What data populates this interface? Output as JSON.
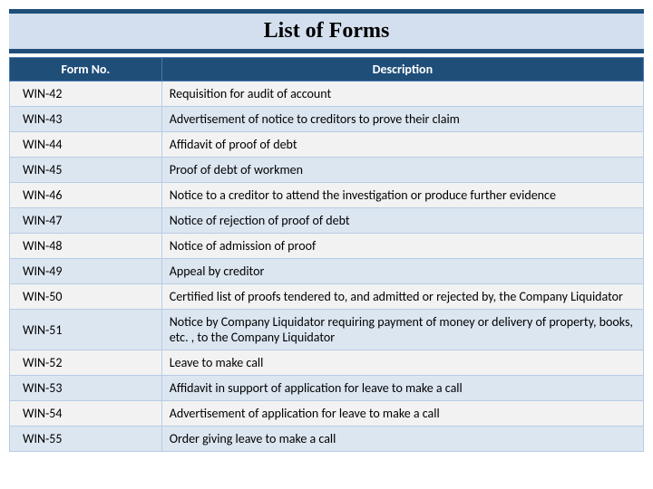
{
  "title": "List of Forms",
  "table": {
    "columns": [
      "Form No.",
      "Description"
    ],
    "col_widths": [
      "24%",
      "76%"
    ],
    "header_bg": "#1f4e79",
    "header_fg": "#ffffff",
    "row_odd_bg": "#f2f2f2",
    "row_even_bg": "#dce6f1",
    "border_color": "#b8cce4",
    "font_size": 14,
    "rows": [
      [
        "WIN-42",
        "Requisition for audit of account"
      ],
      [
        "WIN-43",
        "Advertisement of notice to creditors to prove their claim"
      ],
      [
        "WIN-44",
        "Affidavit of proof of debt"
      ],
      [
        "WIN-45",
        "Proof of debt of workmen"
      ],
      [
        "WIN-46",
        "Notice to a creditor to attend the investigation or produce further evidence"
      ],
      [
        "WIN-47",
        "Notice of rejection of proof of debt"
      ],
      [
        "WIN-48",
        "Notice of admission of proof"
      ],
      [
        "WIN-49",
        "Appeal by creditor"
      ],
      [
        "WIN-50",
        "Certified list of proofs tendered to, and admitted or rejected by, the Company Liquidator"
      ],
      [
        "WIN-51",
        "Notice by Company Liquidator requiring payment of money or delivery of property, books, etc. , to the Company Liquidator"
      ],
      [
        "WIN-52",
        "Leave to make call"
      ],
      [
        "WIN-53",
        "Affidavit in support of application for leave to make a call"
      ],
      [
        "WIN-54",
        "Advertisement of application for leave to make a call"
      ],
      [
        "WIN-55",
        "Order giving leave to make a call"
      ]
    ]
  },
  "title_bar": {
    "background": "#d3dfee",
    "border_color": "#1f4e79",
    "border_width": 5,
    "font_family": "Georgia",
    "font_size": 24,
    "font_weight": "bold",
    "text_align": "center"
  }
}
